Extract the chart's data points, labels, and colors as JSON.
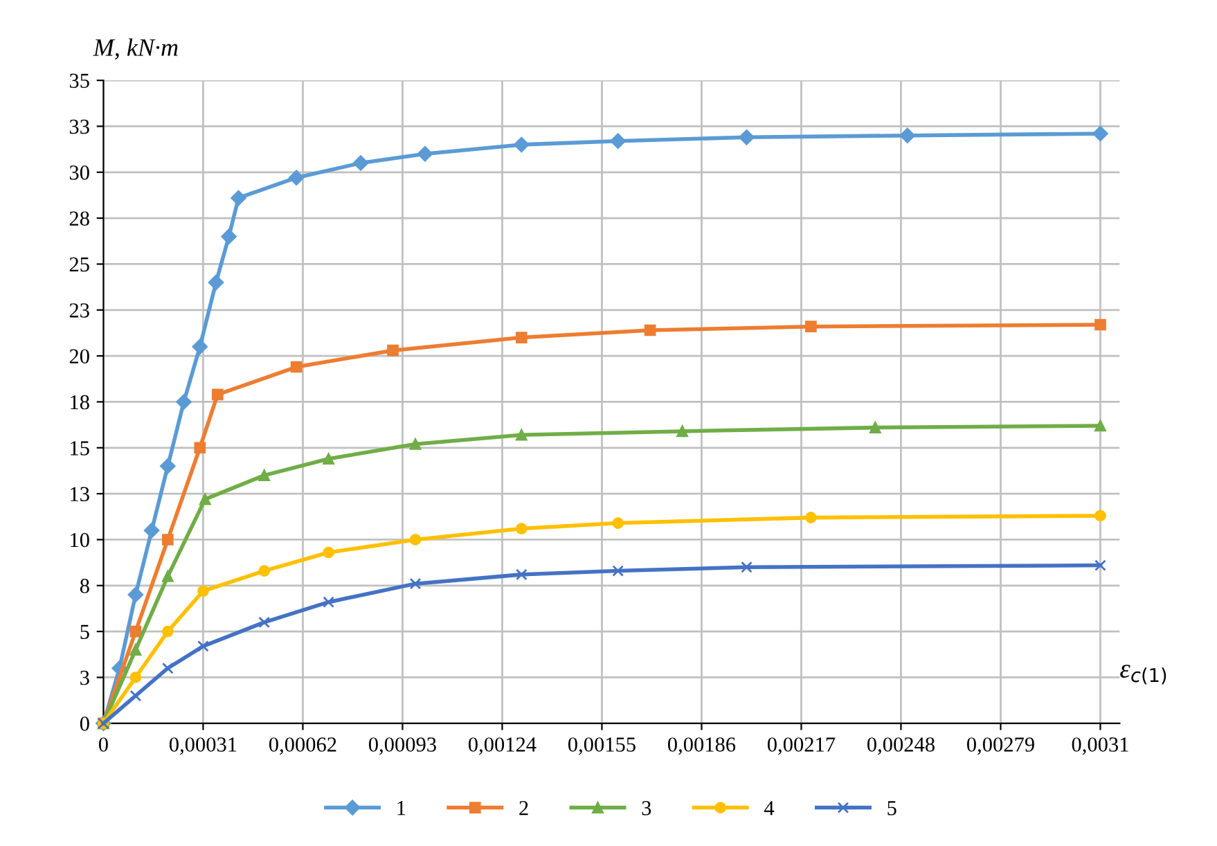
{
  "chart_data": {
    "type": "line",
    "ylabel": "M, kN·m",
    "xlabel": "ε$_{c(1)}$",
    "xlim": [
      0,
      0.00316
    ],
    "ylim": [
      0,
      35
    ],
    "xticks": [
      0,
      {
        "value": 0.00031,
        "label": "0,00031"
      },
      {
        "value": 0.00062,
        "label": "0,00062"
      },
      {
        "value": 0.00093,
        "label": "0,00093"
      },
      {
        "value": 0.00124,
        "label": "0,00124"
      },
      {
        "value": 0.00155,
        "label": "0,00155"
      },
      {
        "value": 0.00186,
        "label": "0,00186"
      },
      {
        "value": 0.00217,
        "label": "0,00217"
      },
      {
        "value": 0.00248,
        "label": "0,00248"
      },
      {
        "value": 0.00279,
        "label": "0,00279"
      },
      {
        "value": 0.0031,
        "label": "0,0031"
      }
    ],
    "yticks": [
      0,
      {
        "value": 2.5,
        "label": "3"
      },
      5,
      {
        "value": 7.5,
        "label": "8"
      },
      10,
      {
        "value": 12.5,
        "label": "13"
      },
      15,
      {
        "value": 17.5,
        "label": "18"
      },
      20,
      {
        "value": 22.5,
        "label": "23"
      },
      25,
      {
        "value": 27.5,
        "label": "28"
      },
      30,
      {
        "value": 32.5,
        "label": "33"
      },
      35
    ],
    "grid": true,
    "legend": "bottom",
    "series": [
      {
        "name": "1",
        "color": "#5b9bd5",
        "marker": "diamond",
        "x": [
          0,
          5e-05,
          0.0001,
          0.00015,
          0.0002,
          0.00025,
          0.0003,
          0.00035,
          0.00039,
          0.00042,
          0.0006,
          0.0008,
          0.001,
          0.0013,
          0.0016,
          0.002,
          0.0025,
          0.0031
        ],
        "values": [
          0,
          3,
          7,
          10.5,
          14,
          17.5,
          20.5,
          24,
          26.5,
          28.6,
          29.7,
          30.5,
          31,
          31.5,
          31.7,
          31.9,
          32,
          32.1
        ]
      },
      {
        "name": "2",
        "color": "#ed7d31",
        "marker": "square",
        "x": [
          0,
          0.0001,
          0.0002,
          0.0003,
          0.000355,
          0.0006,
          0.0009,
          0.0013,
          0.0017,
          0.0022,
          0.0031
        ],
        "values": [
          0,
          5,
          10,
          15,
          17.9,
          19.4,
          20.3,
          21,
          21.4,
          21.6,
          21.7
        ]
      },
      {
        "name": "3",
        "color": "#70ad47",
        "marker": "triangle",
        "x": [
          0,
          0.0001,
          0.0002,
          0.000316,
          0.0005,
          0.0007,
          0.00097,
          0.0013,
          0.0018,
          0.0024,
          0.0031
        ],
        "values": [
          0,
          4,
          8,
          12.2,
          13.5,
          14.4,
          15.2,
          15.7,
          15.9,
          16.1,
          16.2
        ]
      },
      {
        "name": "4",
        "color": "#ffc000",
        "marker": "circle",
        "x": [
          0,
          0.0001,
          0.0002,
          0.00031,
          0.0005,
          0.0007,
          0.00097,
          0.0013,
          0.0016,
          0.0022,
          0.0031
        ],
        "values": [
          0,
          2.5,
          5,
          7.2,
          8.3,
          9.3,
          10,
          10.6,
          10.9,
          11.2,
          11.3
        ]
      },
      {
        "name": "5",
        "color": "#4472c4",
        "marker": "cross",
        "x": [
          0,
          0.0001,
          0.0002,
          0.00031,
          0.0005,
          0.0007,
          0.00097,
          0.0013,
          0.0016,
          0.002,
          0.0031
        ],
        "values": [
          0,
          1.5,
          3,
          4.2,
          5.5,
          6.6,
          7.6,
          8.1,
          8.3,
          8.5,
          8.6
        ]
      }
    ]
  }
}
